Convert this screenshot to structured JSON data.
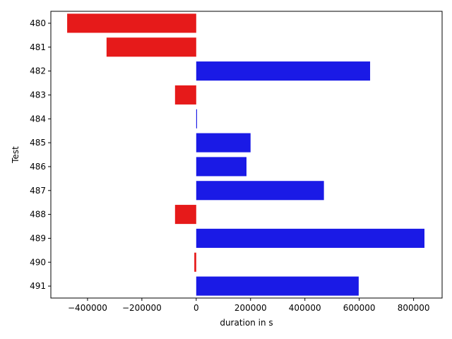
{
  "chart_data": {
    "type": "bar",
    "orientation": "horizontal",
    "title": "",
    "xlabel": "duration in s",
    "ylabel": "Test",
    "categories": [
      "480",
      "481",
      "482",
      "483",
      "484",
      "485",
      "486",
      "487",
      "488",
      "489",
      "490",
      "491"
    ],
    "values": [
      -475000,
      -330000,
      640000,
      -78000,
      3000,
      200000,
      185000,
      470000,
      -78000,
      840000,
      -7000,
      598000
    ],
    "xlim": [
      -535000,
      905000
    ],
    "xticks": [
      -400000,
      -200000,
      0,
      200000,
      400000,
      600000,
      800000
    ],
    "grid": false,
    "legend": "none",
    "colors": {
      "positive": "#1a1ae6",
      "negative": "#e61a1a"
    }
  }
}
